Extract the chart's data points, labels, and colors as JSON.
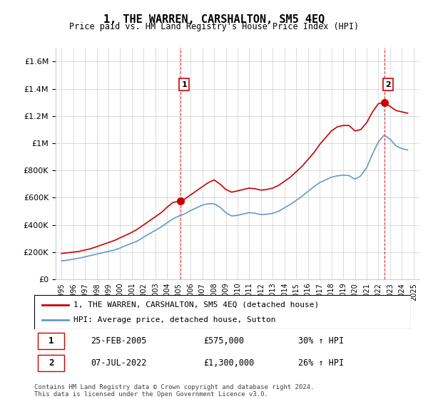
{
  "title": "1, THE WARREN, CARSHALTON, SM5 4EQ",
  "subtitle": "Price paid vs. HM Land Registry's House Price Index (HPI)",
  "legend_line1": "1, THE WARREN, CARSHALTON, SM5 4EQ (detached house)",
  "legend_line2": "HPI: Average price, detached house, Sutton",
  "footnote": "Contains HM Land Registry data © Crown copyright and database right 2024.\nThis data is licensed under the Open Government Licence v3.0.",
  "annotation1": {
    "num": "1",
    "date": "25-FEB-2005",
    "price": "£575,000",
    "hpi": "30% ↑ HPI"
  },
  "annotation2": {
    "num": "2",
    "date": "07-JUL-2022",
    "price": "£1,300,000",
    "hpi": "26% ↑ HPI"
  },
  "vline1_x": 2005.15,
  "vline2_x": 2022.52,
  "red_line_color": "#cc0000",
  "blue_line_color": "#6699cc",
  "background_color": "#ffffff",
  "grid_color": "#cccccc",
  "ylim": [
    0,
    1700000
  ],
  "xlim_start": 1995,
  "xlim_end": 2025.5,
  "red_data": {
    "years": [
      1995.0,
      1995.5,
      1996.0,
      1996.5,
      1997.0,
      1997.5,
      1998.0,
      1998.5,
      1999.0,
      1999.5,
      2000.0,
      2000.5,
      2001.0,
      2001.5,
      2002.0,
      2002.5,
      2003.0,
      2003.5,
      2004.0,
      2004.5,
      2005.15,
      2005.5,
      2006.0,
      2006.5,
      2007.0,
      2007.5,
      2008.0,
      2008.5,
      2009.0,
      2009.5,
      2010.0,
      2010.5,
      2011.0,
      2011.5,
      2012.0,
      2012.5,
      2013.0,
      2013.5,
      2014.0,
      2014.5,
      2015.0,
      2015.5,
      2016.0,
      2016.5,
      2017.0,
      2017.5,
      2018.0,
      2018.5,
      2019.0,
      2019.5,
      2020.0,
      2020.5,
      2021.0,
      2021.5,
      2022.0,
      2022.52,
      2023.0,
      2023.5,
      2024.0,
      2024.5
    ],
    "values": [
      190000,
      195000,
      200000,
      205000,
      215000,
      225000,
      240000,
      255000,
      270000,
      285000,
      305000,
      325000,
      345000,
      370000,
      400000,
      430000,
      460000,
      490000,
      530000,
      565000,
      575000,
      590000,
      620000,
      650000,
      680000,
      710000,
      730000,
      700000,
      660000,
      640000,
      650000,
      660000,
      670000,
      665000,
      655000,
      660000,
      670000,
      690000,
      720000,
      750000,
      790000,
      830000,
      880000,
      930000,
      990000,
      1040000,
      1090000,
      1120000,
      1130000,
      1130000,
      1090000,
      1100000,
      1150000,
      1230000,
      1290000,
      1300000,
      1270000,
      1240000,
      1230000,
      1220000
    ]
  },
  "blue_data": {
    "years": [
      1995.0,
      1995.5,
      1996.0,
      1996.5,
      1997.0,
      1997.5,
      1998.0,
      1998.5,
      1999.0,
      1999.5,
      2000.0,
      2000.5,
      2001.0,
      2001.5,
      2002.0,
      2002.5,
      2003.0,
      2003.5,
      2004.0,
      2004.5,
      2005.0,
      2005.5,
      2006.0,
      2006.5,
      2007.0,
      2007.5,
      2008.0,
      2008.5,
      2009.0,
      2009.5,
      2010.0,
      2010.5,
      2011.0,
      2011.5,
      2012.0,
      2012.5,
      2013.0,
      2013.5,
      2014.0,
      2014.5,
      2015.0,
      2015.5,
      2016.0,
      2016.5,
      2017.0,
      2017.5,
      2018.0,
      2018.5,
      2019.0,
      2019.5,
      2020.0,
      2020.5,
      2021.0,
      2021.5,
      2022.0,
      2022.5,
      2023.0,
      2023.5,
      2024.0,
      2024.5
    ],
    "values": [
      135000,
      140000,
      148000,
      155000,
      165000,
      175000,
      185000,
      195000,
      205000,
      215000,
      230000,
      248000,
      265000,
      283000,
      310000,
      335000,
      360000,
      385000,
      415000,
      445000,
      465000,
      480000,
      505000,
      525000,
      545000,
      555000,
      555000,
      530000,
      490000,
      465000,
      470000,
      480000,
      490000,
      485000,
      475000,
      478000,
      485000,
      500000,
      525000,
      550000,
      580000,
      610000,
      645000,
      680000,
      710000,
      730000,
      750000,
      760000,
      765000,
      762000,
      735000,
      760000,
      820000,
      920000,
      1010000,
      1060000,
      1030000,
      980000,
      960000,
      950000
    ]
  }
}
